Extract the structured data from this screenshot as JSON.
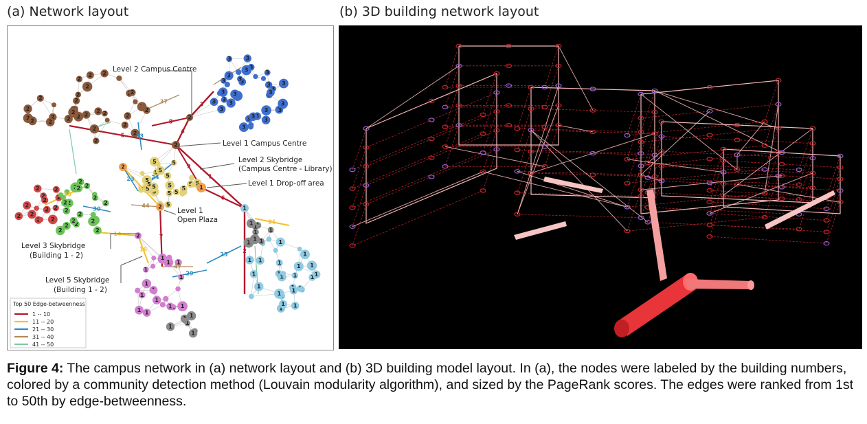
{
  "panel_a": {
    "title": "(a) Network layout",
    "annotations": [
      {
        "id": "campus-centre-l2",
        "text": "Level 2 Campus Centre"
      },
      {
        "id": "campus-centre-l1",
        "text": "Level 1 Campus Centre"
      },
      {
        "id": "skybridge-l2-line1",
        "text": "Level 2 Skybridge"
      },
      {
        "id": "skybridge-l2-line2",
        "text": "(Campus Centre - Library)"
      },
      {
        "id": "dropoff-l1",
        "text": "Level 1 Drop-off area"
      },
      {
        "id": "plaza-line1",
        "text": "Level 1"
      },
      {
        "id": "plaza-line2",
        "text": "Open Plaza"
      },
      {
        "id": "skybridge-l3-line1",
        "text": "Level 3 Skybridge"
      },
      {
        "id": "skybridge-l3-line2",
        "text": "(Building 1 - 2)"
      },
      {
        "id": "skybridge-l5-line1",
        "text": "Level 5 Skybridge"
      },
      {
        "id": "skybridge-l5-line2",
        "text": "(Building 1 - 2)"
      }
    ],
    "legend": {
      "title": "Top 50 Edge-betweenness",
      "items": [
        {
          "label": "1 -- 10",
          "color": "#b2182b"
        },
        {
          "label": "11 -- 20",
          "color": "#f2c12e"
        },
        {
          "label": "21 -- 30",
          "color": "#2b8cbe"
        },
        {
          "label": "31 -- 40",
          "color": "#b08a5b"
        },
        {
          "label": "41 -- 50",
          "color": "#7fc9a8"
        }
      ]
    },
    "community_colors": {
      "1": "#8fcbe3",
      "2": "#d04848",
      "3": "#3f6fcf",
      "4": "#8a8a8a",
      "5": "#e3d27a",
      "6": "#d37fd0",
      "brown": "#8b5a3c",
      "green": "#6cc45a",
      "orange": "#f0a050"
    },
    "edge_labels": [
      "1",
      "2",
      "3",
      "4",
      "5",
      "6",
      "7",
      "8",
      "9",
      "10",
      "13",
      "14",
      "16",
      "21",
      "23",
      "24",
      "25",
      "29",
      "30",
      "33",
      "37",
      "44",
      "47"
    ]
  },
  "panel_b": {
    "title": "(b) 3D building network layout",
    "background": "#000000",
    "edge_color": "#f4b8b8",
    "node_color_main": "#c0262c",
    "node_color_alt": "#9a5fd0"
  },
  "caption": {
    "label": "Figure 4:",
    "text": " The campus network in (a) network layout and (b) 3D building model layout. In (a), the nodes were labeled by the building numbers, colored by a community detection method (Louvain modularity algorithm), and sized by the PageRank scores. The edges were ranked from 1st to 50th by edge-betweenness."
  }
}
